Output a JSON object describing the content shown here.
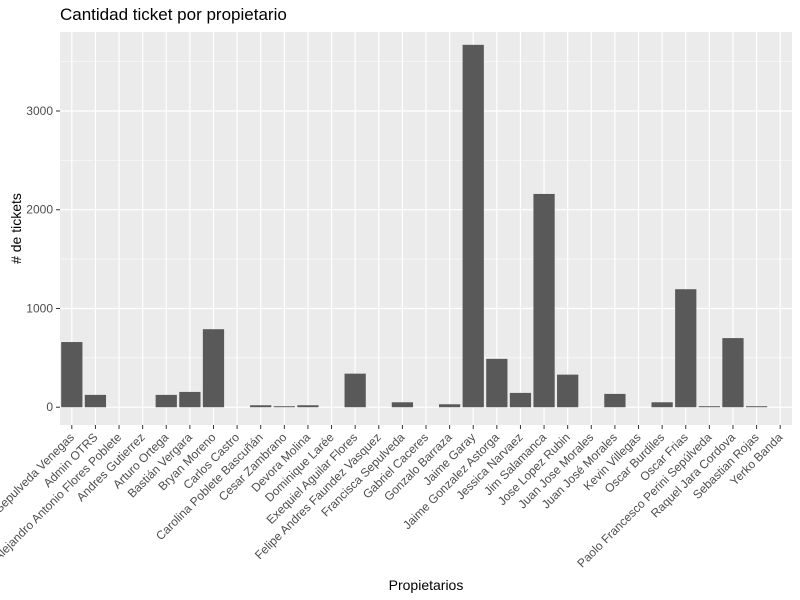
{
  "chart_data": {
    "type": "bar",
    "title": "Cantidad ticket por propietario",
    "xlabel": "Propietarios",
    "ylabel": "# de tickets",
    "ylim": [
      -180,
      3800
    ],
    "yticks": [
      0,
      1000,
      2000,
      3000
    ],
    "grid": true,
    "bar_color": "#595959",
    "panel_color": "#ebebeb",
    "categories": [
      "Adan Sepulveda Venegas",
      "Admin OTRS",
      "Alejandro Antonio Flores Poblete",
      "Andres Gutierrez",
      "Arturo Ortega",
      "Bastián Vergara",
      "Bryan Moreno",
      "Carlos Castro",
      "Carolina Poblete Bascuñán",
      "Cesar Zambrano",
      "Devora Molina",
      "Dominique Larée",
      "Exequiel Aguilar Flores",
      "Felipe Andres Faundez Vasquez",
      "Francisca Sepulveda",
      "Gabriel Caceres",
      "Gonzalo Barraza",
      "Jaime Garay",
      "Jaime Gonzalez Astorga",
      "Jessica Narvaez",
      "Jim Salamanca",
      "Jose Lopez Rubin",
      "Juan Jose Morales",
      "Juan José Morales",
      "Kevin Villegas",
      "Oscar Burdiles",
      "Oscar Frias",
      "Paolo Francesco Perini Sepúlveda",
      "Raquel Jara Cordova",
      "Sebastian Rojas",
      "Yerko Banda"
    ],
    "values": [
      660,
      125,
      0,
      0,
      125,
      155,
      790,
      0,
      20,
      10,
      20,
      0,
      340,
      0,
      50,
      0,
      30,
      3670,
      490,
      145,
      2160,
      330,
      0,
      135,
      0,
      50,
      1195,
      10,
      700,
      10,
      0
    ]
  }
}
